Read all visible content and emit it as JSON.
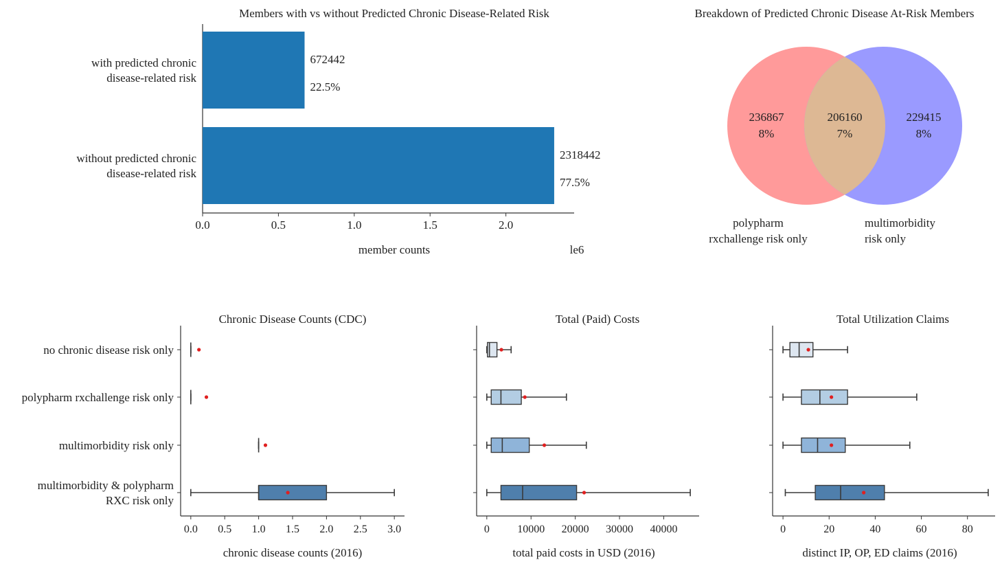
{
  "colors": {
    "bar": "#1f77b4",
    "venn_left": "#ff9a9a",
    "venn_right": "#9a9aff",
    "venn_overlap": "#ddb894",
    "mean_marker": "#e02020",
    "box_fills": [
      "#dde6f0",
      "#b3cde3",
      "#8fb4d9",
      "#4f7fac"
    ]
  },
  "chart_data": [
    {
      "type": "bar",
      "orientation": "horizontal",
      "title": "Members with vs without Predicted Chronic Disease-Related Risk",
      "xlabel": "member counts",
      "x_offset_label": "le6",
      "categories": [
        [
          "with predicted chronic",
          "disease-related risk"
        ],
        [
          "without predicted chronic",
          "disease-related risk"
        ]
      ],
      "values": [
        672442,
        2318442
      ],
      "value_labels": [
        "672442",
        "2318442"
      ],
      "pct_labels": [
        "22.5%",
        "77.5%"
      ],
      "xlim": [
        0,
        2.45
      ],
      "xticks": [
        0.0,
        0.5,
        1.0,
        1.5,
        2.0
      ],
      "xtick_labels": [
        "0.0",
        "0.5",
        "1.0",
        "1.5",
        "2.0"
      ],
      "scale": 1000000
    },
    {
      "type": "venn",
      "title": "Breakdown of Predicted Chronic Disease At-Risk Members",
      "sets": [
        {
          "label": [
            "polypharm",
            "rxchallenge risk only"
          ],
          "count": "236867",
          "pct": "8%"
        },
        {
          "label": [
            "multimorbidity",
            "risk only"
          ],
          "count": "229415",
          "pct": "8%"
        }
      ],
      "overlap": {
        "count": "206160",
        "pct": "7%"
      }
    },
    {
      "type": "box",
      "title": "Chronic Disease Counts (CDC)",
      "xlabel": "chronic disease counts (2016)",
      "categories": [
        [
          "no chronic disease risk only"
        ],
        [
          "polypharm rxchallenge risk only"
        ],
        [
          "multimorbidity risk only"
        ],
        [
          "multimorbidity & polypharm",
          "RXC risk only"
        ]
      ],
      "xlim": [
        -0.15,
        3.15
      ],
      "xticks": [
        0.0,
        0.5,
        1.0,
        1.5,
        2.0,
        2.5,
        3.0
      ],
      "xtick_labels": [
        "0.0",
        "0.5",
        "1.0",
        "1.5",
        "2.0",
        "2.5",
        "3.0"
      ],
      "boxes": [
        {
          "whislo": 0,
          "q1": 0,
          "med": 0,
          "q3": 0,
          "whishi": 0,
          "mean": 0.12
        },
        {
          "whislo": 0,
          "q1": 0,
          "med": 0,
          "q3": 0,
          "whishi": 0,
          "mean": 0.23
        },
        {
          "whislo": 1,
          "q1": 1,
          "med": 1,
          "q3": 1,
          "whishi": 1,
          "mean": 1.1
        },
        {
          "whislo": 0,
          "q1": 1,
          "med": 1,
          "q3": 2,
          "whishi": 3,
          "mean": 1.43
        }
      ]
    },
    {
      "type": "box",
      "title": "Total (Paid) Costs",
      "xlabel": "total paid costs in USD (2016)",
      "categories": [
        [
          "no chronic disease risk only"
        ],
        [
          "polypharm rxchallenge risk only"
        ],
        [
          "multimorbidity risk only"
        ],
        [
          "multimorbidity & polypharm",
          "RXC risk only"
        ]
      ],
      "xlim": [
        -2300,
        48000
      ],
      "xticks": [
        0,
        10000,
        20000,
        30000,
        40000
      ],
      "xtick_labels": [
        "0",
        "10000",
        "20000",
        "30000",
        "40000"
      ],
      "boxes": [
        {
          "whislo": 0,
          "q1": 150,
          "med": 600,
          "q3": 2300,
          "whishi": 5500,
          "mean": 3300
        },
        {
          "whislo": 0,
          "q1": 1000,
          "med": 3200,
          "q3": 7800,
          "whishi": 18000,
          "mean": 8600
        },
        {
          "whislo": 0,
          "q1": 1000,
          "med": 3500,
          "q3": 9600,
          "whishi": 22500,
          "mean": 13000
        },
        {
          "whislo": 0,
          "q1": 3200,
          "med": 8100,
          "q3": 20300,
          "whishi": 46000,
          "mean": 22000
        }
      ]
    },
    {
      "type": "box",
      "title": "Total Utilization Claims",
      "xlabel": "distinct IP, OP, ED claims (2016)",
      "categories": [
        [
          "no chronic disease risk only"
        ],
        [
          "polypharm rxchallenge risk only"
        ],
        [
          "multimorbidity risk only"
        ],
        [
          "multimorbidity & polypharm",
          "RXC risk only"
        ]
      ],
      "xlim": [
        -4.5,
        92
      ],
      "xticks": [
        0,
        20,
        40,
        60,
        80
      ],
      "xtick_labels": [
        "0",
        "20",
        "40",
        "60",
        "80"
      ],
      "boxes": [
        {
          "whislo": 0,
          "q1": 3,
          "med": 7,
          "q3": 13,
          "whishi": 28,
          "mean": 11
        },
        {
          "whislo": 0,
          "q1": 8,
          "med": 16,
          "q3": 28,
          "whishi": 58,
          "mean": 21
        },
        {
          "whislo": 0,
          "q1": 8,
          "med": 15,
          "q3": 27,
          "whishi": 55,
          "mean": 21
        },
        {
          "whislo": 1,
          "q1": 14,
          "med": 25,
          "q3": 44,
          "whishi": 89,
          "mean": 35
        }
      ]
    }
  ]
}
